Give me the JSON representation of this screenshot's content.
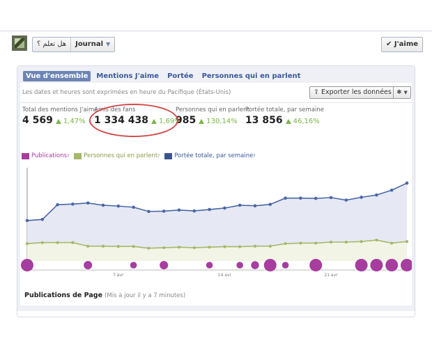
{
  "topbar": {
    "page_name": "هل تعلم ؟",
    "journal_label": "Journal",
    "like_label": "✔ J'aime"
  },
  "tabs": [
    {
      "label": "Vue d'ensemble",
      "active": true
    },
    {
      "label": "Mentions J'aime",
      "active": false
    },
    {
      "label": "Portée",
      "active": false
    },
    {
      "label": "Personnes qui en parlent",
      "active": false
    }
  ],
  "timezone_note": "Les dates et heures sont exprimées en heure du Pacifique (États-Unis)",
  "export_label": "Exporter les données",
  "gear_icon": "gear-icon",
  "stats": [
    {
      "label": "Total des mentions J'aime",
      "value": "4 569",
      "change": "1,47%"
    },
    {
      "label": "Amis des fans",
      "value": "1 334 438",
      "change": "1,69%"
    },
    {
      "label": "Personnes qui en parlent",
      "value": "985",
      "change": "130,14%"
    },
    {
      "label": "Portée totale, par semaine",
      "value": "13 856",
      "change": "46,16%"
    }
  ],
  "legend": [
    {
      "label": "Publications",
      "color": "#a63d9f",
      "text_color": "#a63d9f"
    },
    {
      "label": "Personnes qui en parlent",
      "color": "#a5b868",
      "text_color": "#8a9b47"
    },
    {
      "label": "Portée totale, par semaine",
      "color": "#3b5490",
      "text_color": "#3b5998"
    }
  ],
  "chart_data": {
    "type": "line",
    "x_ticks": [
      "7 avr",
      "14 avr",
      "21 avr"
    ],
    "series": [
      {
        "name": "Portée totale, par semaine",
        "color": "#4a67a8",
        "values": [
          1080,
          1120,
          1640,
          1660,
          1700,
          1620,
          1590,
          1550,
          1400,
          1410,
          1450,
          1420,
          1470,
          1520,
          1620,
          1600,
          1650,
          1870,
          1870,
          1860,
          1890,
          1800,
          1900,
          1980,
          2150,
          2400
        ]
      },
      {
        "name": "Personnes qui en parlent",
        "color": "#a5b868",
        "values": [
          190,
          210,
          210,
          210,
          140,
          140,
          135,
          135,
          100,
          110,
          120,
          110,
          120,
          130,
          130,
          140,
          140,
          190,
          200,
          200,
          220,
          220,
          230,
          260,
          200,
          230
        ]
      },
      {
        "name": "Publications",
        "color": "#a63d9f",
        "values": [
          2,
          0,
          0,
          0,
          1,
          0,
          0,
          0.6,
          0,
          1,
          0,
          0,
          0.6,
          0,
          0.6,
          0.9,
          2,
          0.6,
          0,
          2,
          0,
          0,
          2,
          2,
          2,
          2
        ]
      }
    ]
  },
  "footer": {
    "title": "Publications de Page",
    "subtitle": "(Mis à jour il y a 7 minutes)"
  }
}
